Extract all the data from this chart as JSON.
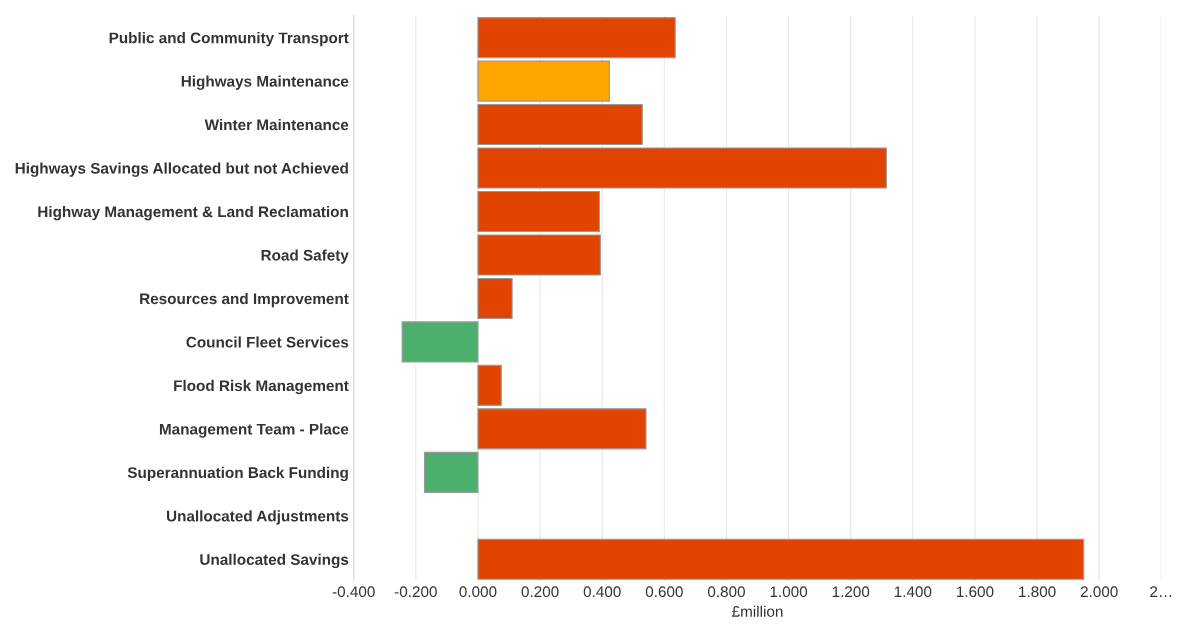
{
  "chart_data": {
    "type": "bar",
    "orientation": "horizontal",
    "xlabel": "£million",
    "categories": [
      "Public and Community Transport",
      "Highways Maintenance",
      "Winter Maintenance",
      "Highways Savings Allocated but not Achieved",
      "Highway Management & Land Reclamation",
      "Road Safety",
      "Resources and Improvement",
      "Council Fleet Services",
      "Flood Risk Management",
      "Management Team - Place",
      "Superannuation Back Funding",
      "Unallocated Adjustments",
      "Unallocated Savings"
    ],
    "values": [
      0.635,
      0.423,
      0.529,
      1.315,
      0.391,
      0.394,
      0.11,
      -0.244,
      0.075,
      0.541,
      -0.172,
      null,
      1.95
    ],
    "colors": [
      "#e04400",
      "#ffa500",
      "#e04400",
      "#e04400",
      "#e04400",
      "#e04400",
      "#e04400",
      "#4caf6e",
      "#e04400",
      "#e04400",
      "#4caf6e",
      "#e04400",
      "#e04400"
    ],
    "xlim": [
      -0.4,
      2.2
    ],
    "xticks": [
      {
        "value": -0.4,
        "label": "-0.400"
      },
      {
        "value": -0.2,
        "label": "-0.200"
      },
      {
        "value": 0,
        "label": "0.000"
      },
      {
        "value": 0.2,
        "label": "0.200"
      },
      {
        "value": 0.4,
        "label": "0.400"
      },
      {
        "value": 0.6,
        "label": "0.600"
      },
      {
        "value": 0.8,
        "label": "0.800"
      },
      {
        "value": 1.0,
        "label": "1.000"
      },
      {
        "value": 1.2,
        "label": "1.200"
      },
      {
        "value": 1.4,
        "label": "1.400"
      },
      {
        "value": 1.6,
        "label": "1.600"
      },
      {
        "value": 1.8,
        "label": "1.800"
      },
      {
        "value": 2.0,
        "label": "2.000"
      },
      {
        "value": 2.2,
        "label": "2…"
      }
    ],
    "grid": "x",
    "legend": false
  }
}
